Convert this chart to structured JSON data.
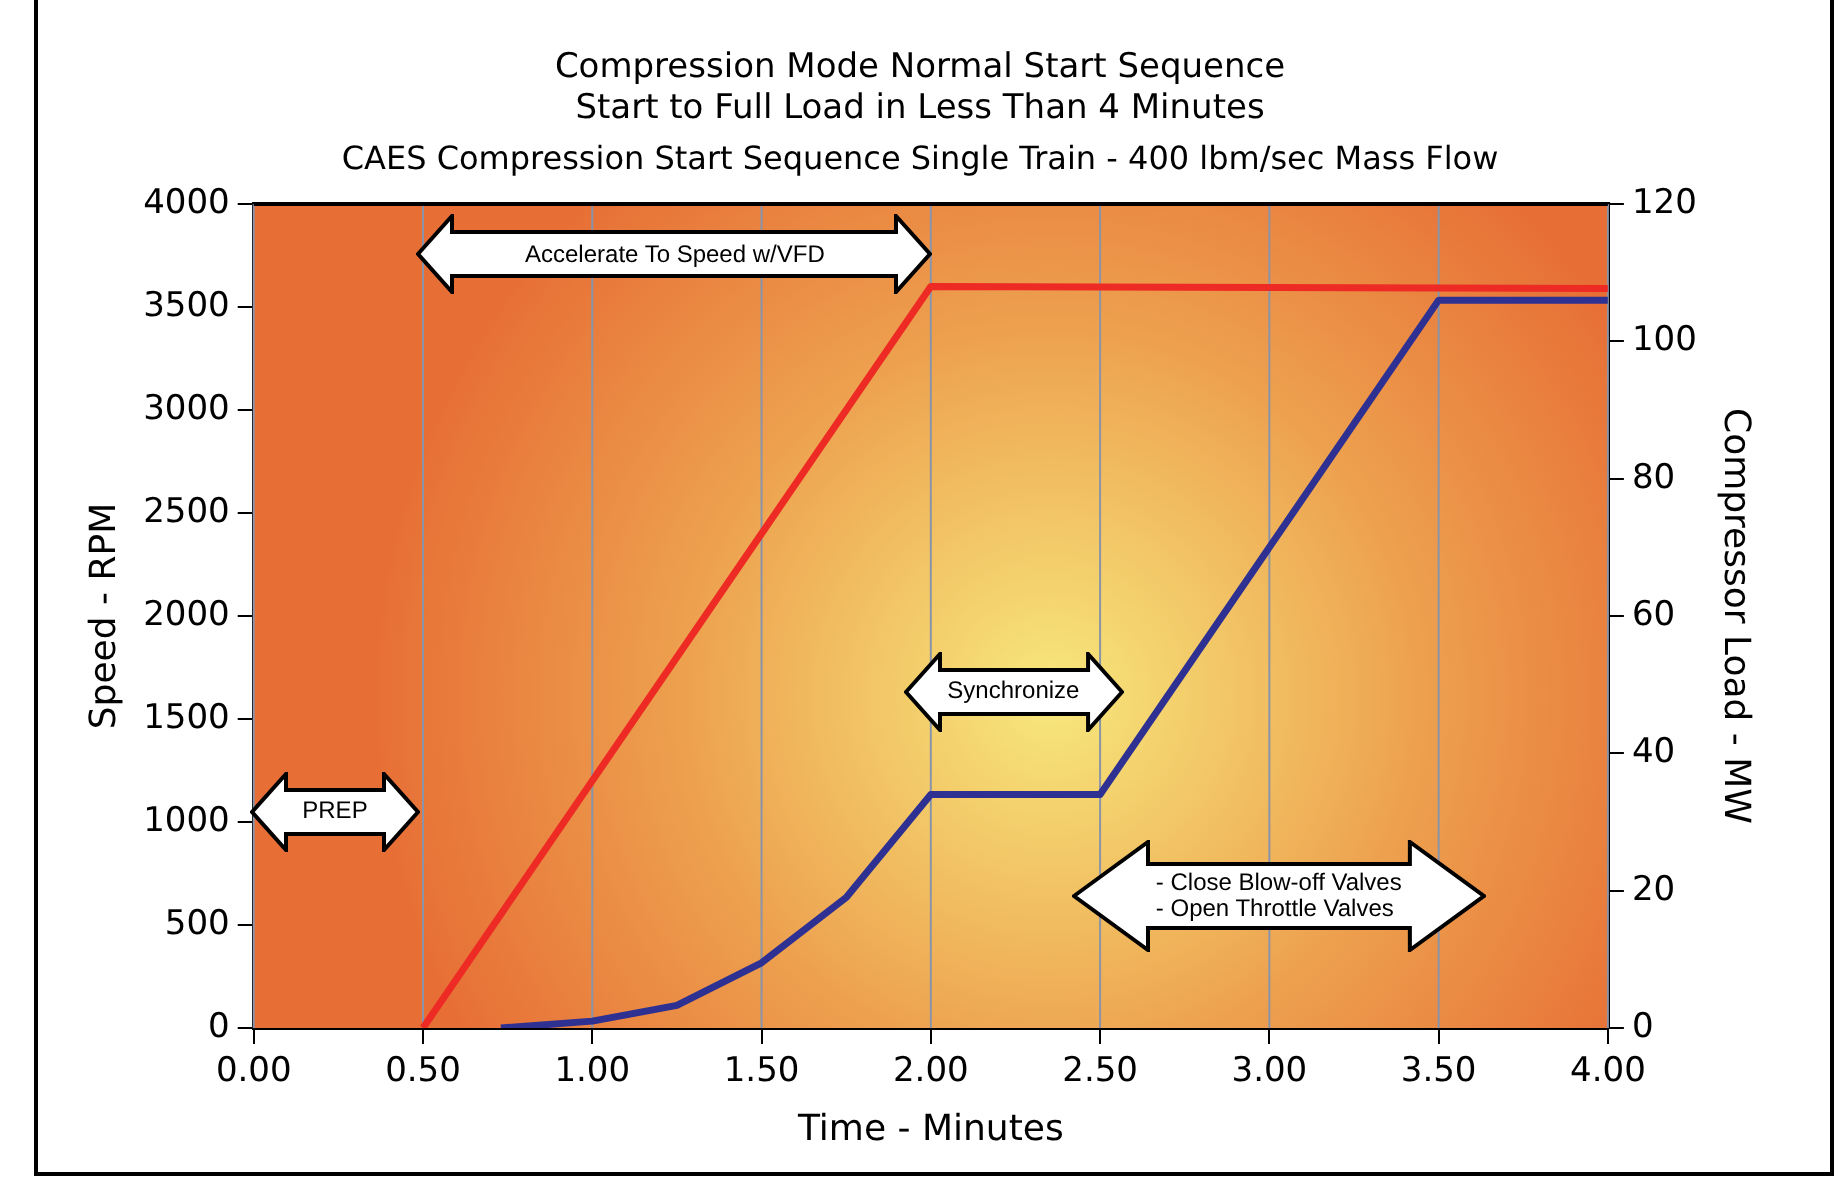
{
  "chart_data": {
    "type": "line",
    "title": "Compression Mode Normal Start Sequence\nStart to Full Load in Less Than 4 Minutes",
    "subtitle": "CAES Compression Start Sequence Single Train - 400 lbm/sec Mass Flow",
    "xlabel": "Time - Minutes",
    "ylabel": "Speed - RPM",
    "y2label": "Compressor Load - MW",
    "series": [
      {
        "color": "#ee2a24",
        "x": [
          0.5,
          2.0,
          4.0
        ],
        "values": [
          0,
          3600,
          3590
        ]
      },
      {
        "color": "#2e3192",
        "axis": "y2",
        "x": [
          0.73,
          1.0,
          1.25,
          1.5,
          1.75,
          2.0,
          2.5,
          3.5,
          4.0
        ],
        "values": [
          0,
          1,
          3.3,
          9.5,
          19,
          34,
          34,
          106,
          106
        ]
      }
    ],
    "xlim": [
      0,
      4
    ],
    "xticks": [
      {
        "value": 0,
        "label": "0.00"
      },
      {
        "value": 0.5,
        "label": "0.50"
      },
      {
        "value": 1,
        "label": "1.00"
      },
      {
        "value": 1.5,
        "label": "1.50"
      },
      {
        "value": 2,
        "label": "2.00"
      },
      {
        "value": 2.5,
        "label": "2.50"
      },
      {
        "value": 3,
        "label": "3.00"
      },
      {
        "value": 3.5,
        "label": "3.50"
      },
      {
        "value": 4,
        "label": "4.00"
      }
    ],
    "ylim": [
      0,
      4000
    ],
    "yticks": [
      0,
      500,
      1000,
      1500,
      2000,
      2500,
      3000,
      3500,
      4000
    ],
    "y2lim": [
      0,
      120
    ],
    "y2ticks": [
      0,
      20,
      40,
      60,
      80,
      100,
      120
    ],
    "grid": "x",
    "legend": false,
    "marker": "none",
    "line_style": "solid",
    "annotations": [
      "PREP",
      "Accelerate To Speed w/VFD",
      "Synchronize",
      "- Close Blow-off Valves\n- Open Throttle Valves"
    ]
  }
}
